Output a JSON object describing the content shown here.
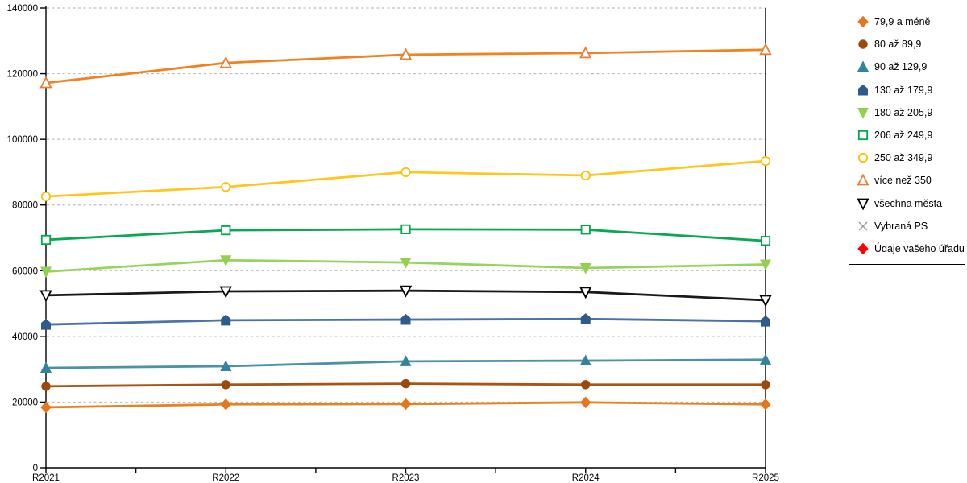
{
  "chart_data": {
    "type": "line",
    "title": "",
    "xlabel": "",
    "ylabel": "",
    "categories": [
      "R2021",
      "R2022",
      "R2023",
      "R2024",
      "R2025"
    ],
    "series": [
      {
        "name": "79,9 a méně",
        "marker": "diamond",
        "filled": true,
        "color": "#E8751A",
        "line_color": "#E8821F",
        "values": [
          18400,
          19300,
          19400,
          19900,
          19300
        ]
      },
      {
        "name": "80 až 89,9",
        "marker": "circle",
        "filled": true,
        "color": "#9C4A0B",
        "line_color": "#A85412",
        "values": [
          24800,
          25300,
          25600,
          25300,
          25300
        ]
      },
      {
        "name": "90 až 129,9",
        "marker": "triangle-up",
        "filled": true,
        "color": "#31849B",
        "line_color": "#4A92A9",
        "values": [
          30400,
          30900,
          32400,
          32600,
          32900
        ]
      },
      {
        "name": "130 až 179,9",
        "marker": "pentagon",
        "filled": true,
        "color": "#2F5B8C",
        "line_color": "#4A74A8",
        "values": [
          43600,
          44900,
          45100,
          45300,
          44600
        ]
      },
      {
        "name": "180 až 205,9",
        "marker": "triangle-down",
        "filled": true,
        "color": "#92D050",
        "line_color": "#97D45B",
        "values": [
          59700,
          63200,
          62500,
          60800,
          61900
        ]
      },
      {
        "name": "206 až 249,9",
        "marker": "square",
        "filled": false,
        "color": "#00A650",
        "line_color": "#0AA755",
        "values": [
          69400,
          72300,
          72600,
          72500,
          69100
        ]
      },
      {
        "name": "250 až 349,9",
        "marker": "circle",
        "filled": false,
        "color": "#FFC000",
        "line_color": "#FFC61C",
        "values": [
          82600,
          85500,
          90000,
          89000,
          93400
        ]
      },
      {
        "name": "více než 350",
        "marker": "triangle-up",
        "filled": false,
        "color": "#ED7D31",
        "line_color": "#F0831F",
        "values": [
          117200,
          123300,
          125800,
          126300,
          127300
        ]
      },
      {
        "name": "všechna města",
        "marker": "triangle-down",
        "filled": false,
        "color": "#000000",
        "line_color": "#1A1A1A",
        "values": [
          52500,
          53700,
          53900,
          53500,
          51000
        ]
      },
      {
        "name": "Vybraná PS",
        "marker": "x",
        "filled": false,
        "color": "#9B9B9B",
        "line_color": "#9B9B9B",
        "values": []
      },
      {
        "name": "Údaje vašeho úřadu",
        "marker": "diamond",
        "filled": true,
        "color": "#FF0000",
        "line_color": "#FF0000",
        "values": []
      }
    ],
    "ylim": [
      0,
      140000
    ],
    "y_ticks": [
      0,
      20000,
      40000,
      60000,
      80000,
      100000,
      120000,
      140000
    ],
    "y_tick_labels": [
      "0",
      "20000",
      "40000",
      "60000",
      "80000",
      "100000",
      "120000",
      "140000"
    ],
    "grid": "horizontal-dashed",
    "legend_position": "top-right",
    "colors": {
      "axis": "#000000",
      "gridline": "#BDBDBD",
      "background": "#FFFFFF"
    }
  }
}
